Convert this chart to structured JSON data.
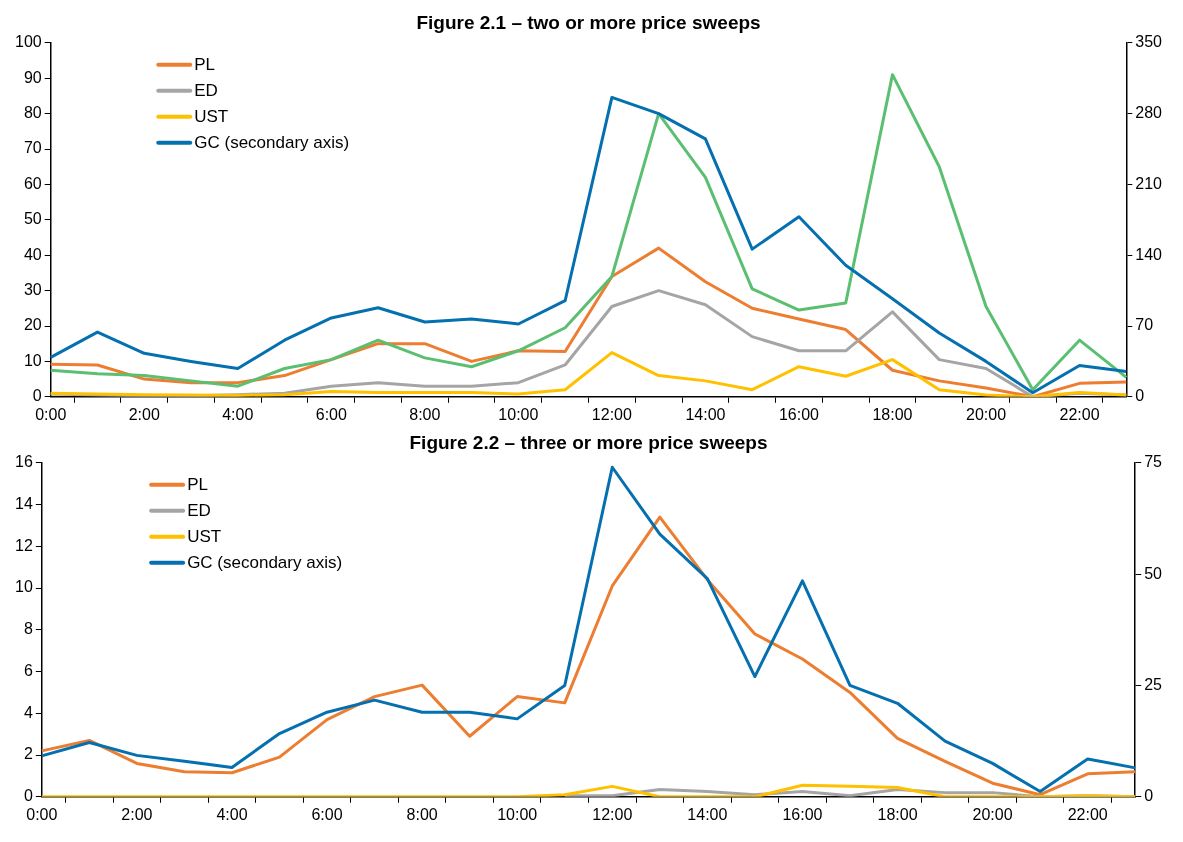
{
  "chart_data": [
    {
      "type": "line",
      "title": "Figure 2.1 – two or more price sweeps",
      "categories": [
        "0:00",
        null,
        "2:00",
        null,
        "4:00",
        null,
        "6:00",
        null,
        "8:00",
        null,
        "10:00",
        null,
        "12:00",
        null,
        "14:00",
        null,
        "16:00",
        null,
        "18:00",
        null,
        "20:00",
        null,
        "22:00",
        null
      ],
      "series": [
        {
          "name": "PL",
          "color": "#ed7d31",
          "values": [
            9.2,
            9,
            5,
            4,
            4,
            6,
            10.5,
            15,
            15,
            10,
            13,
            12.8,
            34,
            42,
            32.5,
            25,
            22,
            19,
            7.5,
            4.5,
            2.5,
            0,
            3.8,
            4.2
          ]
        },
        {
          "name": "ED",
          "color": "#a5a5a5",
          "values": [
            0.8,
            0.5,
            0.3,
            0.3,
            0.6,
            1,
            3,
            4,
            3,
            3,
            4,
            9,
            25.5,
            30,
            26,
            17,
            13,
            13,
            24,
            10.5,
            8,
            0,
            1,
            0.5
          ]
        },
        {
          "name": "UST",
          "color": "#ffc000",
          "values": [
            1,
            0.8,
            0.6,
            0.5,
            0.4,
            0.6,
            1.5,
            1.2,
            1.2,
            1.2,
            0.8,
            2,
            12.5,
            6,
            4.5,
            2,
            8.5,
            5.8,
            10.5,
            2,
            0.5,
            0,
            1.2,
            0.5
          ]
        },
        {
          "color": "#5bbf72",
          "values": [
            7.5,
            6.5,
            6,
            4.5,
            3,
            8,
            10.5,
            16,
            11,
            8.5,
            13,
            19.5,
            34,
            80,
            62,
            30.5,
            24.5,
            26.5,
            91,
            65,
            25.5,
            2,
            16,
            5.5
          ]
        },
        {
          "name": "GC (secondary axis)",
          "color": "#0570b0",
          "axis": "y2",
          "values": [
            39,
            64,
            43,
            35,
            28,
            56,
            78,
            88,
            74,
            77,
            72,
            95,
            296,
            280,
            255,
            146,
            178,
            130,
            97,
            63,
            35,
            4,
            31,
            25
          ]
        }
      ],
      "ylim": [
        0,
        100
      ],
      "yticks": [
        0,
        10,
        20,
        30,
        40,
        50,
        60,
        70,
        80,
        90,
        100
      ],
      "y2lim": [
        0,
        350
      ],
      "y2ticks": [
        0,
        70,
        140,
        210,
        280,
        350
      ],
      "grid": false,
      "legend": "top left",
      "marker": "none",
      "line_style": "solid"
    },
    {
      "type": "line",
      "title": "Figure 2.2 – three or more price sweeps",
      "categories": [
        "0:00",
        null,
        "2:00",
        null,
        "4:00",
        null,
        "6:00",
        null,
        "8:00",
        null,
        "10:00",
        null,
        "12:00",
        null,
        "14:00",
        null,
        "16:00",
        null,
        "18:00",
        null,
        "20:00",
        null,
        "22:00",
        null
      ],
      "series": [
        {
          "name": "PL",
          "color": "#ed7d31",
          "values": [
            2.2,
            2.7,
            1.6,
            1.2,
            1.15,
            1.9,
            3.7,
            4.8,
            5.35,
            2.9,
            4.8,
            4.5,
            10.1,
            13.4,
            10.4,
            7.8,
            6.6,
            5,
            2.8,
            1.7,
            0.65,
            0.1,
            1.1,
            1.2
          ]
        },
        {
          "name": "ED",
          "color": "#a5a5a5",
          "values": [
            null,
            null,
            null,
            null,
            null,
            null,
            null,
            null,
            null,
            null,
            null,
            0.05,
            0.05,
            0.35,
            0.25,
            0.1,
            0.25,
            0.05,
            0.35,
            0.2,
            0.2,
            0,
            0.05,
            0
          ]
        },
        {
          "name": "UST",
          "color": "#ffc000",
          "values": [
            0,
            0,
            0,
            0,
            0,
            0,
            0,
            0,
            0,
            0,
            0,
            0.1,
            0.5,
            0,
            0,
            0,
            0.55,
            0.5,
            0.45,
            0,
            0,
            0,
            0.05,
            0
          ]
        },
        {
          "color": "#5bbf72",
          "values": [
            null,
            null,
            null,
            null,
            null,
            null,
            null,
            null,
            null,
            null,
            null,
            null,
            null,
            null,
            null,
            null,
            null,
            null,
            null,
            null,
            null,
            null,
            null,
            null
          ]
        },
        {
          "name": "GC (secondary axis)",
          "color": "#0570b0",
          "axis": "y2",
          "values": [
            9.2,
            12.2,
            9.3,
            8,
            6.6,
            14.2,
            19,
            21.7,
            19,
            19,
            17.5,
            25,
            74,
            59,
            49,
            27,
            48.5,
            25,
            21,
            12.5,
            7.5,
            1.2,
            8.5,
            6.5
          ]
        }
      ],
      "ylim": [
        0,
        16
      ],
      "yticks": [
        0,
        2,
        4,
        6,
        8,
        10,
        12,
        14,
        16
      ],
      "y2lim": [
        0,
        75
      ],
      "y2ticks": [
        0,
        25,
        50,
        75
      ],
      "grid": false,
      "legend": "top left",
      "marker": "none",
      "line_style": "solid"
    }
  ]
}
